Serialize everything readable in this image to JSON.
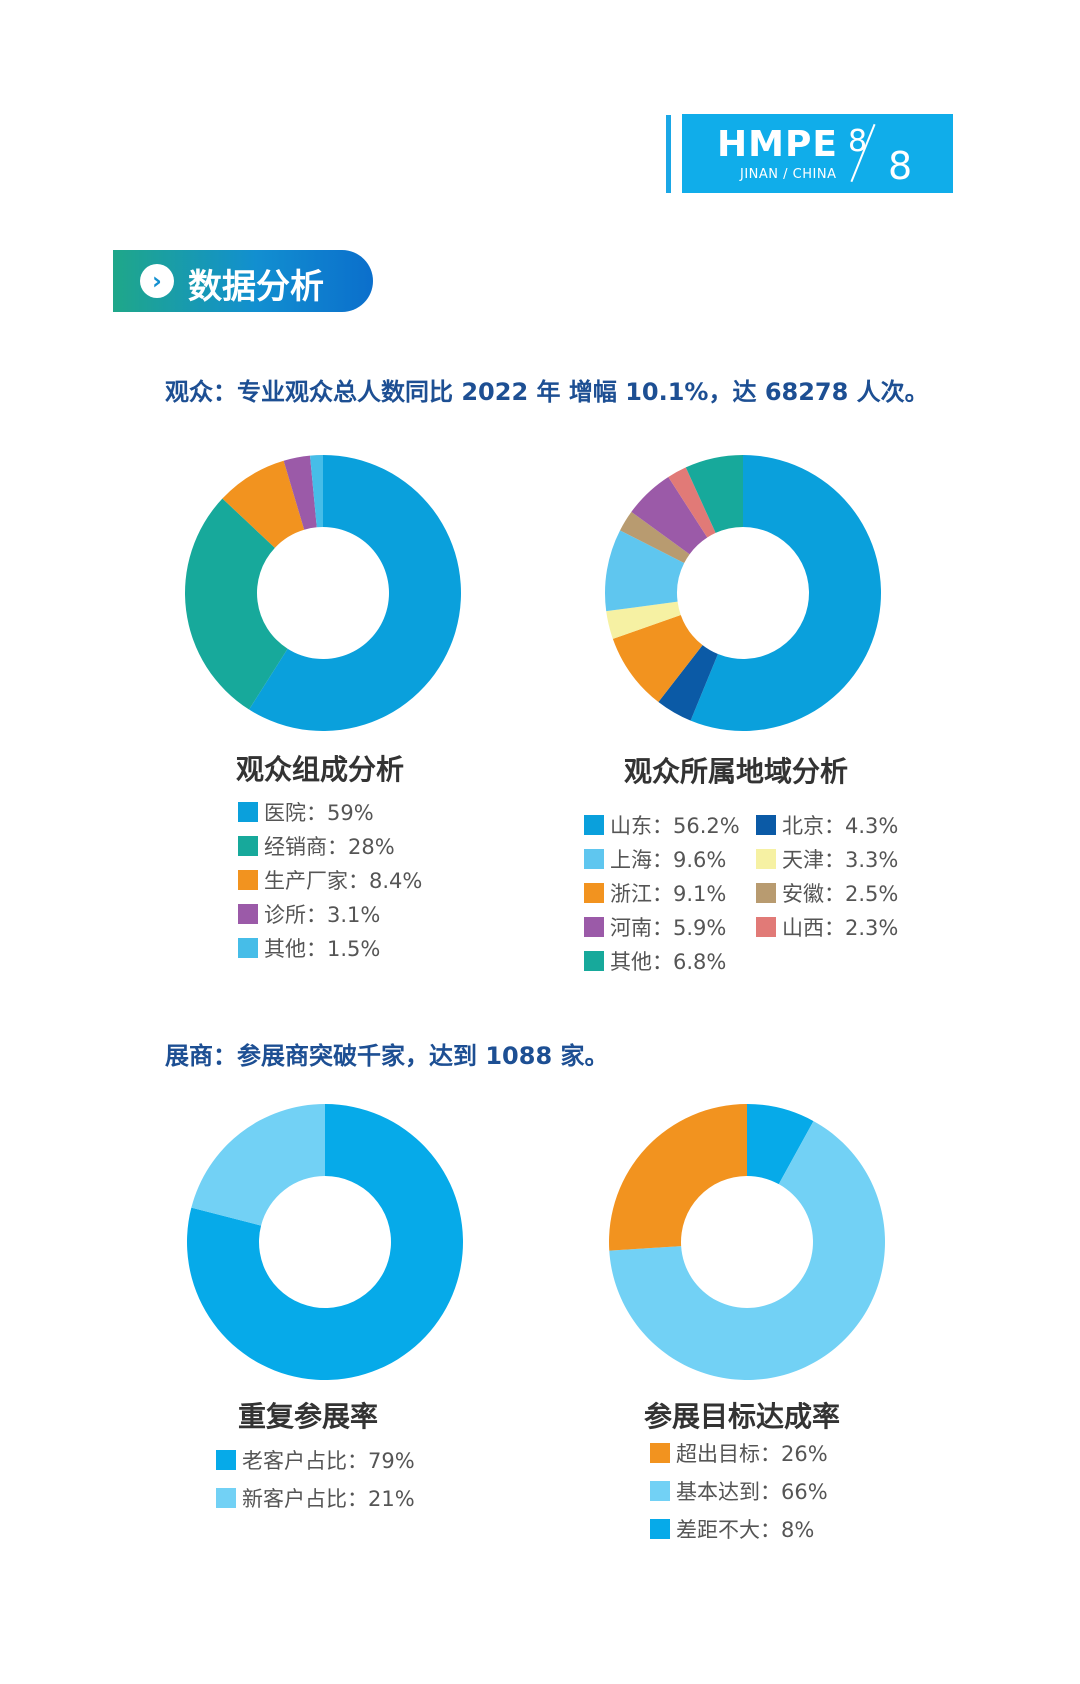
{
  "header": {
    "logo_main": "HMPE",
    "logo_sub": "JINAN / CHINA",
    "page_number": "8",
    "page_total": "8"
  },
  "section": {
    "title": "数据分析",
    "icon": "chevron-right-icon"
  },
  "audience": {
    "summary": "观众：专业观众总人数同比 2022 年 增幅 10.1%，达 68278 人次。"
  },
  "exhibitors": {
    "summary": "展商：参展商突破千家，达到 1088 家。"
  },
  "chart_data": [
    {
      "type": "pie",
      "title": "观众组成分析",
      "categories": [
        "医院",
        "经销商",
        "生产厂家",
        "诊所",
        "其他"
      ],
      "values": [
        59,
        28,
        8.4,
        3.1,
        1.5
      ],
      "labels": [
        "医院：59%",
        "经销商：28%",
        "生产厂家：8.4%",
        "诊所：3.1%",
        "其他：1.5%"
      ],
      "colors": [
        "#0aa0dc",
        "#17a99b",
        "#f2931f",
        "#9b5aa8",
        "#46bde8"
      ]
    },
    {
      "type": "pie",
      "title": "观众所属地域分析",
      "categories": [
        "山东",
        "北京",
        "浙江",
        "天津",
        "上海",
        "安徽",
        "河南",
        "山西",
        "其他"
      ],
      "values": [
        56.2,
        4.3,
        9.1,
        3.3,
        9.6,
        2.5,
        5.9,
        2.3,
        6.8
      ],
      "labels": [
        "山东：56.2%",
        "北京：4.3%",
        "浙江：9.1%",
        "天津：3.3%",
        "上海：9.6%",
        "安徽：2.5%",
        "河南：5.9%",
        "山西：2.3%",
        "其他：6.8%"
      ],
      "colors": [
        "#0aa0dc",
        "#0b5aa6",
        "#f2931f",
        "#f6f1a3",
        "#5fc6ef",
        "#b89b70",
        "#9b5aa8",
        "#e17a77",
        "#17a99b"
      ]
    },
    {
      "type": "pie",
      "title": "重复参展率",
      "categories": [
        "老客户占比",
        "新客户占比"
      ],
      "values": [
        79,
        21
      ],
      "labels": [
        "老客户占比：79%",
        "新客户占比：21%"
      ],
      "colors": [
        "#06aae9",
        "#72d1f5"
      ]
    },
    {
      "type": "pie",
      "title": "参展目标达成率",
      "categories": [
        "差距不大",
        "基本达到",
        "超出目标"
      ],
      "values": [
        8,
        66,
        26
      ],
      "labels": [
        "超出目标：26%",
        "基本达到：66%",
        "差距不大：8%"
      ],
      "colors": [
        "#06aae9",
        "#72d1f5",
        "#f2931f"
      ]
    }
  ]
}
